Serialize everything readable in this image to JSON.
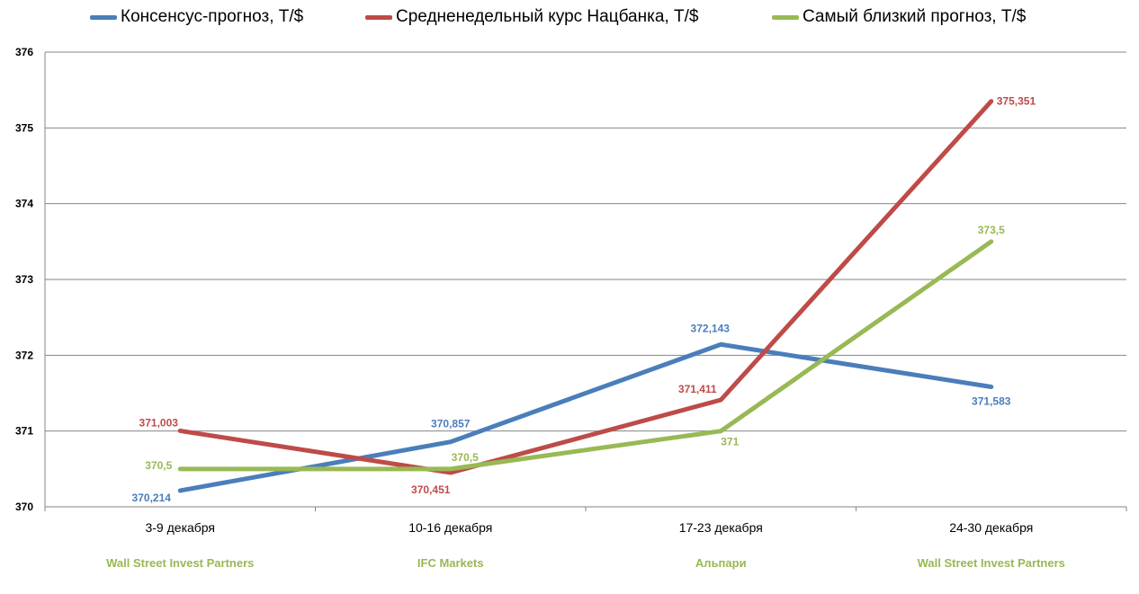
{
  "chart_data": {
    "type": "line",
    "categories": [
      "3-9 декабря",
      "10-16 декабря",
      "17-23 декабря",
      "24-30 декабря"
    ],
    "category_sublabels": [
      "Wall Street Invest Partners",
      "IFC Markets",
      "Альпари",
      "Wall Street Invest Partners"
    ],
    "series": [
      {
        "name": "Консенсус-прогноз,  Т/$",
        "color": "#4a7ebb",
        "values": [
          370.214,
          370.857,
          372.143,
          371.583
        ],
        "labels": [
          "370,214",
          "370,857",
          "372,143",
          "371,583"
        ]
      },
      {
        "name": "Средненедельный  курс Нацбанка, Т/$",
        "color": "#be4b48",
        "values": [
          371.003,
          370.451,
          371.411,
          375.351
        ],
        "labels": [
          "371,003",
          "370,451",
          "371,411",
          "375,351"
        ]
      },
      {
        "name": "Самый близкий прогноз, Т/$",
        "color": "#98b954",
        "values": [
          370.5,
          370.5,
          371,
          373.5
        ],
        "labels": [
          "370,5",
          "370,5",
          "371",
          "373,5"
        ]
      }
    ],
    "ylim": [
      370,
      376
    ],
    "yticks": [
      "370",
      "371",
      "372",
      "373",
      "374",
      "375",
      "376"
    ],
    "grid": true,
    "legend_position": "top",
    "sublabel_color": "#98b954"
  }
}
